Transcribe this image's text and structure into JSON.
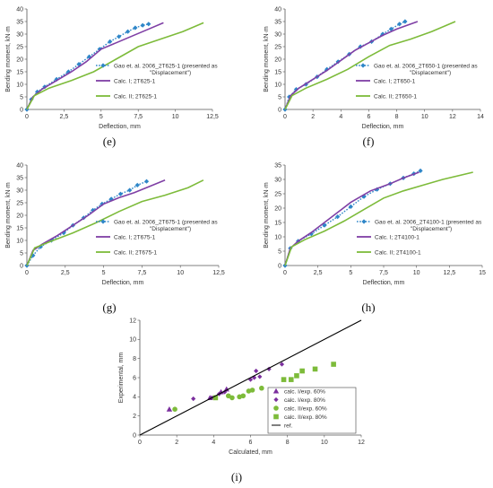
{
  "panels_chart_data": [
    {
      "type": "line",
      "caption": "(e)",
      "xlabel": "Deflection, mm",
      "ylabel": "Bending moment, kN·m",
      "xlim": [
        0,
        12.5
      ],
      "ylim": [
        0,
        40
      ],
      "xticks": [
        "0",
        "2,5",
        "5",
        "7,5",
        "10",
        "12,5"
      ],
      "yticks": [
        "0",
        "5",
        "10",
        "15",
        "20",
        "25",
        "30",
        "35",
        "40"
      ],
      "series": [
        {
          "name": "Gao et. al. 2006_2T625-1 (presented as \"Displacement\")",
          "style": "dotted-diamond",
          "color": "#2e86c8",
          "x": [
            0,
            0.3,
            0.7,
            1.2,
            2.0,
            2.8,
            3.5,
            4.2,
            4.9,
            5.6,
            6.2,
            6.8,
            7.3,
            7.8,
            8.2
          ],
          "y": [
            0,
            4,
            7,
            9,
            12,
            15,
            18,
            21,
            24,
            27,
            29,
            31,
            32.5,
            33.5,
            34
          ]
        },
        {
          "name": "Calc. I; 2T625-1",
          "style": "solid",
          "color": "#7f3fa5",
          "x": [
            0,
            0.4,
            1.0,
            2.0,
            3.0,
            4.0,
            5.0,
            6.0,
            7.0,
            8.0,
            9.2
          ],
          "y": [
            0,
            5,
            8,
            11.5,
            15,
            19,
            24,
            26.5,
            29,
            31.5,
            34.5
          ]
        },
        {
          "name": "Calc. II; 2T625-1",
          "style": "solid",
          "color": "#7dbb3a",
          "x": [
            0,
            0.5,
            1.5,
            3.0,
            4.5,
            6.0,
            7.5,
            9.0,
            10.5,
            11.9
          ],
          "y": [
            0,
            5.5,
            8.5,
            11.5,
            15,
            20,
            25,
            28,
            31,
            34.5
          ]
        }
      ]
    },
    {
      "type": "line",
      "caption": "(f)",
      "xlabel": "Deflection, mm",
      "ylabel": "Bending moment, kN·m",
      "xlim": [
        0,
        14
      ],
      "ylim": [
        0,
        40
      ],
      "xticks": [
        "0",
        "2",
        "4",
        "6",
        "8",
        "10",
        "12",
        "14"
      ],
      "yticks": [
        "0",
        "5",
        "10",
        "15",
        "20",
        "25",
        "30",
        "35",
        "40"
      ],
      "series": [
        {
          "name": "Gao et. al. 2006_2T650-1 (presented as \"Displacement\")",
          "style": "dotted-diamond",
          "color": "#2e86c8",
          "x": [
            0,
            0.3,
            0.8,
            1.5,
            2.3,
            3.0,
            3.8,
            4.6,
            5.4,
            6.2,
            7.0,
            7.6,
            8.2,
            8.6
          ],
          "y": [
            0,
            5,
            8,
            10,
            13,
            16,
            19,
            22,
            25,
            27,
            30,
            32,
            34,
            35
          ]
        },
        {
          "name": "Calc. I; 2T650-1",
          "style": "solid",
          "color": "#7f3fa5",
          "x": [
            0,
            0.4,
            1.0,
            2.0,
            3.0,
            4.0,
            5.0,
            6.0,
            7.0,
            8.0,
            9.5
          ],
          "y": [
            0,
            5.5,
            8.5,
            12,
            15.5,
            19.5,
            23.5,
            26.5,
            29.5,
            32,
            35
          ]
        },
        {
          "name": "Calc. II; 2T650-1",
          "style": "solid",
          "color": "#7dbb3a",
          "x": [
            0,
            0.5,
            1.5,
            3.0,
            4.5,
            6.0,
            7.5,
            9.0,
            10.5,
            12.2
          ],
          "y": [
            0,
            5.5,
            8.5,
            12,
            16,
            21,
            25.5,
            28,
            31,
            35
          ]
        }
      ]
    },
    {
      "type": "line",
      "caption": "(g)",
      "xlabel": "Deflection, mm",
      "ylabel": "Bending moment, kN·m",
      "xlim": [
        0,
        12.5
      ],
      "ylim": [
        0,
        40
      ],
      "xticks": [
        "0",
        "2,5",
        "5",
        "7,5",
        "10",
        "12,5"
      ],
      "yticks": [
        "0",
        "5",
        "10",
        "15",
        "20",
        "25",
        "30",
        "35",
        "40"
      ],
      "series": [
        {
          "name": "Gao et. al. 2006_2T675-1 (presented as \"Displacement\")",
          "style": "dotted-diamond",
          "color": "#2e86c8",
          "x": [
            0,
            0.4,
            0.9,
            1.6,
            2.4,
            3.0,
            3.7,
            4.3,
            4.9,
            5.5,
            6.1,
            6.7,
            7.2,
            7.8
          ],
          "y": [
            0,
            4,
            7.5,
            10,
            13,
            16,
            19,
            22,
            24.5,
            26.5,
            28.5,
            30,
            32,
            33.5
          ]
        },
        {
          "name": "Calc. I; 2T675-1",
          "style": "solid",
          "color": "#7f3fa5",
          "x": [
            0,
            0.4,
            1.0,
            2.0,
            3.0,
            4.0,
            5.0,
            6.0,
            7.0,
            8.0,
            9.0
          ],
          "y": [
            0,
            6,
            8.5,
            12,
            16,
            20,
            24.5,
            27,
            29,
            31.5,
            34
          ]
        },
        {
          "name": "Calc. II; 2T675-1",
          "style": "solid",
          "color": "#7dbb3a",
          "x": [
            0,
            0.5,
            1.5,
            3.0,
            4.5,
            6.0,
            7.5,
            9.0,
            10.5,
            11.5
          ],
          "y": [
            0,
            7,
            9.5,
            13,
            17,
            21.5,
            25.5,
            28,
            31,
            34
          ]
        }
      ]
    },
    {
      "type": "line",
      "caption": "(h)",
      "xlabel": "Deflection, mm",
      "ylabel": "Bending moment, kN·m",
      "xlim": [
        0,
        15
      ],
      "ylim": [
        0,
        35
      ],
      "xticks": [
        "0",
        "2,5",
        "5",
        "7,5",
        "10",
        "12,5",
        "15"
      ],
      "yticks": [
        "0",
        "5",
        "10",
        "15",
        "20",
        "25",
        "30",
        "35"
      ],
      "series": [
        {
          "name": "Gao et. al. 2006_2T4100-1 (presented as \"Displacement\")",
          "style": "dotted-diamond",
          "color": "#2e86c8",
          "x": [
            0,
            0.4,
            1.0,
            2.0,
            3.0,
            4.0,
            5.0,
            6.0,
            7.0,
            8.0,
            9.0,
            9.8,
            10.3
          ],
          "y": [
            0,
            6,
            8.5,
            11,
            14,
            17,
            20.5,
            24,
            26.5,
            28.5,
            30.5,
            32,
            33
          ]
        },
        {
          "name": "Calc. I; 2T4100-1",
          "style": "solid",
          "color": "#7f3fa5",
          "x": [
            0,
            0.4,
            1.0,
            2.0,
            3.0,
            4.0,
            5.0,
            6.5,
            8.0,
            9.0,
            10.2
          ],
          "y": [
            0,
            6,
            8.5,
            11.5,
            15,
            18.5,
            22,
            26,
            28.5,
            30.5,
            32.5
          ]
        },
        {
          "name": "Calc. II; 2T4100-1",
          "style": "solid",
          "color": "#7dbb3a",
          "x": [
            0,
            0.5,
            1.5,
            3.0,
            4.5,
            6.0,
            7.5,
            9.0,
            10.5,
            12.0,
            14.3
          ],
          "y": [
            0,
            6.5,
            9,
            12,
            15.5,
            19.5,
            23.5,
            26,
            28,
            30,
            32.5
          ]
        }
      ]
    },
    {
      "type": "scatter",
      "caption": "(i)",
      "xlabel": "Calculated, mm",
      "ylabel": "Experimental, mm",
      "xlim": [
        0,
        12
      ],
      "ylim": [
        0,
        12
      ],
      "xticks": [
        "0",
        "2",
        "4",
        "6",
        "8",
        "10",
        "12"
      ],
      "yticks": [
        "0",
        "2",
        "4",
        "6",
        "8",
        "10",
        "12"
      ],
      "series": [
        {
          "name": "calc. I/exp. 60%",
          "marker": "triangle",
          "color": "#7b2f9e",
          "x": [
            1.6,
            3.8,
            4.4,
            4.7
          ],
          "y": [
            2.7,
            3.9,
            4.5,
            4.8
          ]
        },
        {
          "name": "calc. I/exp. 80%",
          "marker": "diamond",
          "color": "#7b2f9e",
          "x": [
            2.9,
            3.9,
            4.3,
            4.6,
            6.0,
            6.2,
            6.3,
            6.5,
            7.0,
            7.7
          ],
          "y": [
            3.8,
            3.9,
            4.3,
            4.5,
            5.8,
            6.0,
            6.7,
            6.1,
            6.9,
            7.4
          ]
        },
        {
          "name": "calc. II/exp. 60%",
          "marker": "circle",
          "color": "#7dbb3a",
          "x": [
            1.9,
            4.8,
            5.0,
            5.4,
            5.6,
            5.9,
            6.1,
            6.6
          ],
          "y": [
            2.7,
            4.1,
            3.9,
            4.0,
            4.1,
            4.6,
            4.7,
            4.9
          ]
        },
        {
          "name": "calc. II/exp. 80%",
          "marker": "square",
          "color": "#7dbb3a",
          "x": [
            4.1,
            7.8,
            8.2,
            8.5,
            8.8,
            9.5,
            10.5
          ],
          "y": [
            3.9,
            5.8,
            5.8,
            6.2,
            6.7,
            6.9,
            7.4
          ]
        },
        {
          "name": "ref.",
          "style": "solid",
          "color": "#000000",
          "x": [
            0,
            12
          ],
          "y": [
            0,
            12
          ]
        }
      ]
    }
  ]
}
